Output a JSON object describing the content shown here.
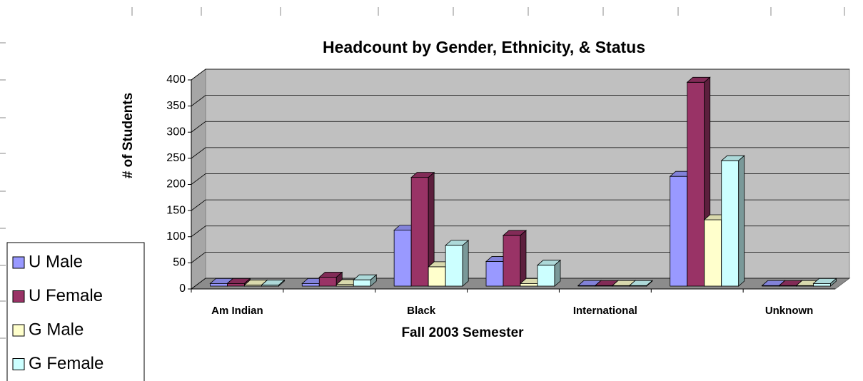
{
  "chart_data": {
    "type": "bar3d",
    "title": "Headcount by Gender, Ethnicity, & Status",
    "x_label": "Fall 2003 Semester",
    "y_label": "# of Students",
    "categories": [
      "Am Indian",
      null,
      "Black",
      null,
      "International",
      null,
      "Unknown"
    ],
    "series": [
      {
        "name": "U Male",
        "color": "#9999ff",
        "values": [
          5,
          5,
          107,
          47,
          1,
          210,
          1
        ]
      },
      {
        "name": "U Female",
        "color": "#993366",
        "values": [
          5,
          17,
          208,
          97,
          1,
          390,
          1
        ]
      },
      {
        "name": "G Male",
        "color": "#ffffcc",
        "values": [
          2,
          3,
          37,
          5,
          1,
          127,
          1
        ]
      },
      {
        "name": "G Female",
        "color": "#ccffff",
        "values": [
          2,
          12,
          78,
          40,
          1,
          240,
          5
        ]
      }
    ],
    "ylim": [
      0,
      400
    ],
    "yticks": [
      0,
      50,
      100,
      150,
      200,
      250,
      300,
      350,
      400
    ],
    "grid": true
  }
}
